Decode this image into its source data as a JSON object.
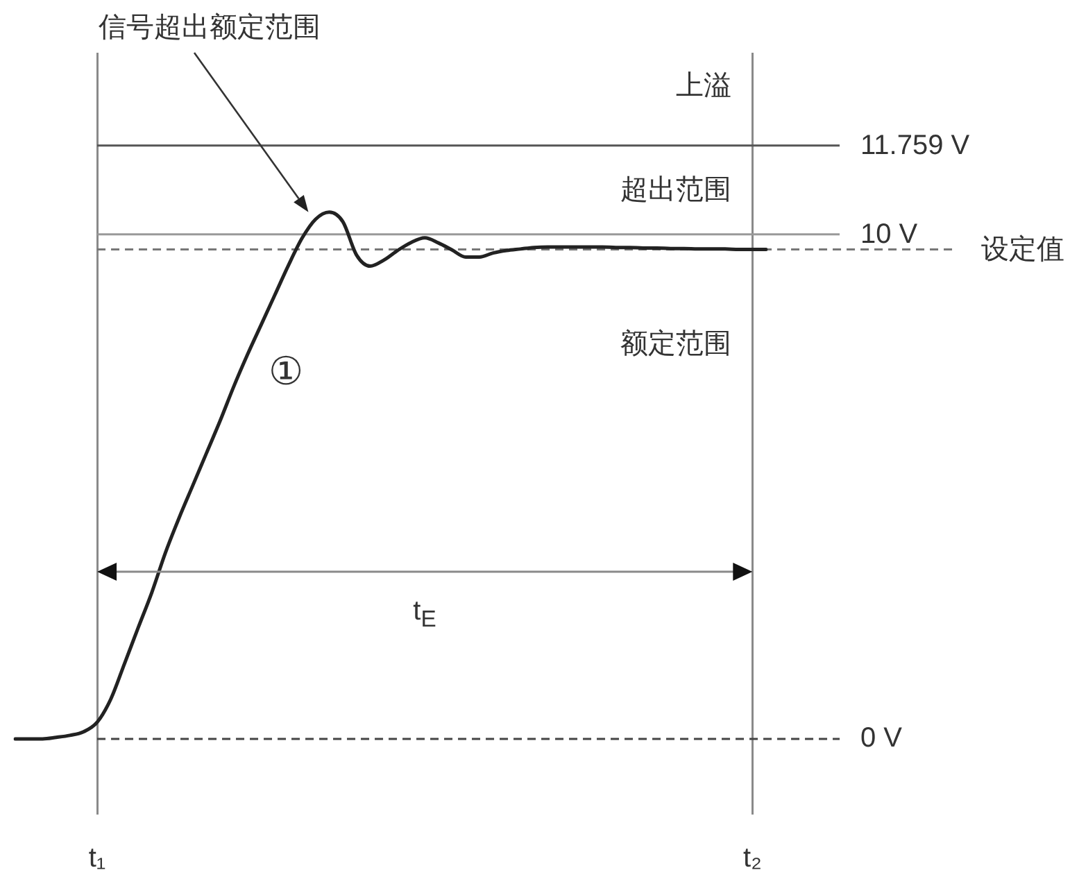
{
  "chart_data": {
    "type": "line",
    "categories": [
      null,
      null,
      null,
      null,
      null,
      null,
      "t₁",
      null,
      null,
      null,
      null,
      null,
      null,
      null,
      null,
      null,
      null,
      null,
      null,
      null,
      null,
      null,
      null,
      null,
      null,
      null,
      null,
      null,
      null,
      null,
      null,
      null,
      null,
      null,
      null,
      null,
      null,
      null,
      null,
      null,
      null,
      null,
      null,
      null,
      null,
      null,
      null,
      null,
      null,
      null,
      null,
      null,
      null,
      null,
      "t₂",
      null
    ],
    "series": [
      {
        "color": "#222222",
        "values": [
          0,
          0,
          0,
          0.03,
          0.07,
          0.14,
          0.33,
          0.79,
          1.49,
          2.2,
          2.9,
          3.69,
          4.38,
          5.02,
          5.66,
          6.3,
          6.98,
          7.61,
          8.2,
          8.79,
          9.38,
          9.92,
          10.3,
          10.44,
          10.25,
          9.59,
          9.37,
          9.49,
          9.68,
          9.84,
          9.93,
          9.83,
          9.69,
          9.55,
          9.55,
          9.63,
          9.68,
          9.71,
          9.74,
          9.75,
          9.75,
          9.75,
          9.75,
          9.75,
          9.74,
          9.74,
          9.73,
          9.73,
          9.72,
          9.72,
          9.71,
          9.71,
          9.71,
          9.7,
          9.7,
          9.7
        ]
      }
    ],
    "ylim": [
      -1.5,
      13.6
    ],
    "grid": "x",
    "tick_labels": "x",
    "ref_lines": [
      {
        "axis": "y",
        "value": 11.759,
        "label": "11.759 V",
        "color": "#555555"
      },
      {
        "axis": "y",
        "value": 10,
        "label": "10 V",
        "color": "#999999"
      },
      {
        "axis": "y",
        "value": 9.7,
        "label": "设定值",
        "color": "#777777",
        "line_style": "dashed"
      },
      {
        "axis": "y",
        "value": 0,
        "label": "0 V",
        "color": "#444444",
        "line_style": "dashed"
      }
    ],
    "annotations": [
      "信号超出额定范围",
      "①",
      "上溢",
      "超出范围",
      "额定范围",
      "t$_{E}$"
    ]
  }
}
